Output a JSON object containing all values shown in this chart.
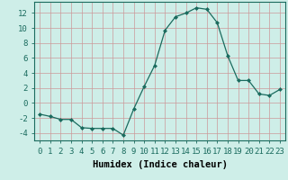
{
  "x": [
    0,
    1,
    2,
    3,
    4,
    5,
    6,
    7,
    8,
    9,
    10,
    11,
    12,
    13,
    14,
    15,
    16,
    17,
    18,
    19,
    20,
    21,
    22,
    23
  ],
  "y": [
    -1.5,
    -1.8,
    -2.2,
    -2.2,
    -3.3,
    -3.4,
    -3.4,
    -3.4,
    -4.3,
    -0.8,
    2.2,
    5.0,
    9.7,
    11.5,
    12.0,
    12.7,
    12.5,
    10.7,
    6.3,
    3.0,
    3.0,
    1.2,
    1.0,
    1.8
  ],
  "line_color": "#1a6b5e",
  "marker": "D",
  "marker_size": 2.0,
  "bg_color": "#ceeee8",
  "grid_color": "#aacccc",
  "grid_major_color": "#cc9999",
  "xlabel": "Humidex (Indice chaleur)",
  "xlim": [
    -0.5,
    23.5
  ],
  "ylim": [
    -5,
    13.5
  ],
  "yticks": [
    -4,
    -2,
    0,
    2,
    4,
    6,
    8,
    10,
    12
  ],
  "xticks": [
    0,
    1,
    2,
    3,
    4,
    5,
    6,
    7,
    8,
    9,
    10,
    11,
    12,
    13,
    14,
    15,
    16,
    17,
    18,
    19,
    20,
    21,
    22,
    23
  ],
  "xtick_labels": [
    "0",
    "1",
    "2",
    "3",
    "4",
    "5",
    "6",
    "7",
    "8",
    "9",
    "10",
    "11",
    "12",
    "13",
    "14",
    "15",
    "16",
    "17",
    "18",
    "19",
    "20",
    "21",
    "22",
    "23"
  ],
  "label_fontsize": 7.5,
  "tick_fontsize": 6.5
}
